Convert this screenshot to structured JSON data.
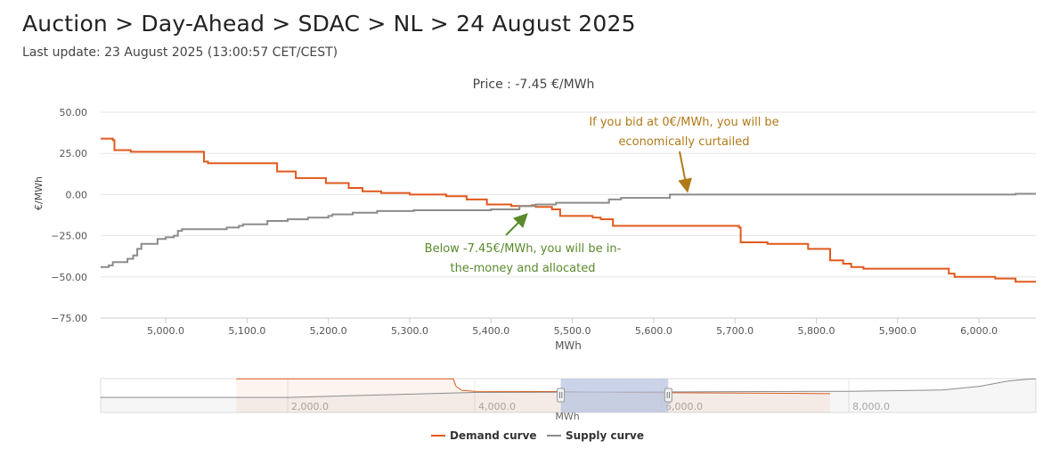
{
  "page": {
    "title": "Auction > Day-Ahead > SDAC > NL > 24 August 2025",
    "subtitle": "Last update: 23 August 2025 (13:00:57 CET/CEST)"
  },
  "colors": {
    "demand": "#e05a1c",
    "supply": "#8c8c8c",
    "annotation_top": "#b07a18",
    "annotation_bottom": "#5a8a2c",
    "navigator_mask": "#b8c4e0"
  },
  "chart_data": {
    "type": "line",
    "title": "Price : -7.45 €/MWh",
    "xlabel": "MWh",
    "ylabel": "€/MWh",
    "xlim": [
      4920,
      6070
    ],
    "ylim": [
      -75,
      50
    ],
    "x_ticks": [
      5000,
      5100,
      5200,
      5300,
      5400,
      5500,
      5600,
      5700,
      5800,
      5900,
      6000
    ],
    "x_tick_labels": [
      "5,000.0",
      "5,100.0",
      "5,200.0",
      "5,300.0",
      "5,400.0",
      "5,500.0",
      "5,600.0",
      "5,700.0",
      "5,800.0",
      "5,900.0",
      "6,000.0"
    ],
    "y_ticks": [
      50,
      25,
      0,
      -25,
      -50,
      -75
    ],
    "y_tick_labels": [
      "50.00",
      "25.00",
      "0.00",
      "−25.00",
      "−50.00",
      "−75.00"
    ],
    "grid": true,
    "legend_position": "bottom-center",
    "series": [
      {
        "name": "Demand curve",
        "step": true,
        "points": [
          [
            4920,
            34
          ],
          [
            4935,
            33
          ],
          [
            4937,
            27
          ],
          [
            4955,
            27
          ],
          [
            4957,
            26
          ],
          [
            5030,
            26
          ],
          [
            5045,
            26
          ],
          [
            5047,
            20
          ],
          [
            5052,
            19
          ],
          [
            5130,
            19
          ],
          [
            5135,
            19
          ],
          [
            5137,
            14
          ],
          [
            5158,
            14
          ],
          [
            5160,
            10
          ],
          [
            5195,
            10
          ],
          [
            5197,
            7
          ],
          [
            5223,
            7
          ],
          [
            5225,
            4
          ],
          [
            5240,
            4
          ],
          [
            5242,
            2
          ],
          [
            5262,
            2
          ],
          [
            5265,
            1
          ],
          [
            5295,
            1
          ],
          [
            5300,
            0
          ],
          [
            5340,
            0
          ],
          [
            5345,
            -1
          ],
          [
            5365,
            -1
          ],
          [
            5370,
            -3
          ],
          [
            5390,
            -3
          ],
          [
            5395,
            -6
          ],
          [
            5420,
            -6
          ],
          [
            5425,
            -7
          ],
          [
            5445,
            -7
          ],
          [
            5450,
            -6.5
          ],
          [
            5455,
            -7.5
          ],
          [
            5470,
            -7.5
          ],
          [
            5475,
            -9
          ],
          [
            5480,
            -9
          ],
          [
            5485,
            -13
          ],
          [
            5520,
            -13
          ],
          [
            5525,
            -14
          ],
          [
            5535,
            -15
          ],
          [
            5545,
            -15
          ],
          [
            5550,
            -19
          ],
          [
            5700,
            -19
          ],
          [
            5705,
            -20
          ],
          [
            5707,
            -29
          ],
          [
            5735,
            -29
          ],
          [
            5740,
            -30
          ],
          [
            5785,
            -30
          ],
          [
            5790,
            -33
          ],
          [
            5815,
            -33
          ],
          [
            5817,
            -40
          ],
          [
            5830,
            -40
          ],
          [
            5833,
            -42
          ],
          [
            5840,
            -42
          ],
          [
            5843,
            -44
          ],
          [
            5855,
            -44
          ],
          [
            5858,
            -45
          ],
          [
            5960,
            -45
          ],
          [
            5963,
            -48
          ],
          [
            5967,
            -48
          ],
          [
            5970,
            -50
          ],
          [
            6015,
            -50
          ],
          [
            6020,
            -51
          ],
          [
            6040,
            -51
          ],
          [
            6045,
            -53
          ],
          [
            6070,
            -53
          ]
        ]
      },
      {
        "name": "Supply curve",
        "step": true,
        "points": [
          [
            4920,
            -44
          ],
          [
            4930,
            -43
          ],
          [
            4935,
            -41
          ],
          [
            4950,
            -41
          ],
          [
            4953,
            -39
          ],
          [
            4960,
            -37
          ],
          [
            4965,
            -33
          ],
          [
            4970,
            -30
          ],
          [
            4988,
            -30
          ],
          [
            4990,
            -27
          ],
          [
            5000,
            -26
          ],
          [
            5010,
            -25
          ],
          [
            5015,
            -22
          ],
          [
            5020,
            -21
          ],
          [
            5070,
            -21
          ],
          [
            5075,
            -20
          ],
          [
            5090,
            -19
          ],
          [
            5095,
            -18
          ],
          [
            5120,
            -18
          ],
          [
            5125,
            -16
          ],
          [
            5150,
            -15
          ],
          [
            5170,
            -15
          ],
          [
            5175,
            -14
          ],
          [
            5200,
            -13
          ],
          [
            5205,
            -12
          ],
          [
            5225,
            -12
          ],
          [
            5230,
            -11
          ],
          [
            5255,
            -11
          ],
          [
            5260,
            -10
          ],
          [
            5300,
            -10
          ],
          [
            5305,
            -9.5
          ],
          [
            5395,
            -9.5
          ],
          [
            5400,
            -9
          ],
          [
            5430,
            -9
          ],
          [
            5435,
            -7
          ],
          [
            5450,
            -7
          ],
          [
            5455,
            -6
          ],
          [
            5475,
            -6
          ],
          [
            5480,
            -5
          ],
          [
            5540,
            -5
          ],
          [
            5545,
            -3
          ],
          [
            5555,
            -3
          ],
          [
            5560,
            -2
          ],
          [
            5615,
            -2
          ],
          [
            5620,
            0
          ],
          [
            5800,
            0
          ],
          [
            5805,
            0
          ],
          [
            6040,
            0
          ],
          [
            6045,
            0.5
          ],
          [
            6070,
            0.5
          ]
        ]
      }
    ],
    "annotations": [
      {
        "text_lines": [
          "If you bid at 0€/MWh, you will be",
          "economically curtailed"
        ],
        "point_to": [
          5640,
          2
        ]
      },
      {
        "text_lines": [
          "Below -7.45€/MWh, you will be in-",
          "the-money and allocated"
        ],
        "point_to": [
          5445,
          -6.5
        ]
      }
    ],
    "navigator": {
      "xlim": [
        0,
        10000
      ],
      "selected_range": [
        4920,
        6070
      ],
      "x_ticks": [
        2000,
        4000,
        6000,
        8000
      ],
      "x_tick_labels": [
        "2,000.0",
        "4,000.0",
        "6,000.0",
        "8,000.0"
      ],
      "xlabel": "MWh",
      "demand_points": [
        [
          1450,
          34
        ],
        [
          3770,
          34
        ],
        [
          3800,
          10
        ],
        [
          3860,
          -3
        ],
        [
          4000,
          -6
        ],
        [
          4900,
          -7
        ],
        [
          5600,
          -10
        ],
        [
          7500,
          -13
        ],
        [
          7800,
          -14
        ]
      ],
      "supply_points": [
        [
          0,
          -26
        ],
        [
          2000,
          -26
        ],
        [
          4000,
          -10
        ],
        [
          4900,
          -9
        ],
        [
          6000,
          -8
        ],
        [
          8000,
          -6
        ],
        [
          9000,
          -2
        ],
        [
          9400,
          10
        ],
        [
          9700,
          27
        ],
        [
          9900,
          33
        ],
        [
          10000,
          34
        ]
      ]
    }
  }
}
